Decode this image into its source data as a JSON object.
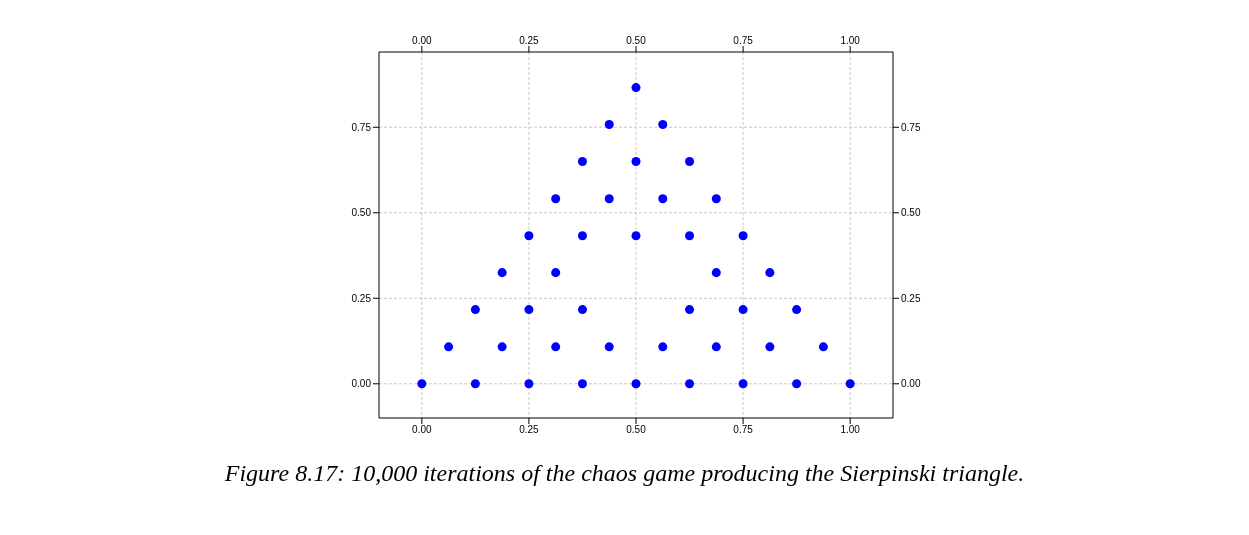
{
  "chart_data": {
    "type": "scatter",
    "x": [
      0,
      0.125,
      0.25,
      0.375,
      0.5,
      0.625,
      0.75,
      0.875,
      1,
      0.0625,
      0.1875,
      0.3125,
      0.4375,
      0.5625,
      0.6875,
      0.8125,
      0.9375,
      0.125,
      0.25,
      0.375,
      0.625,
      0.75,
      0.875,
      0.1875,
      0.3125,
      0.6875,
      0.8125,
      0.25,
      0.375,
      0.5,
      0.625,
      0.75,
      0.3125,
      0.4375,
      0.5625,
      0.6875,
      0.375,
      0.5,
      0.625,
      0.4375,
      0.5625,
      0.5
    ],
    "series": [
      {
        "color": "#0000ff",
        "values": [
          0,
          0,
          0,
          0,
          0,
          0,
          0,
          0,
          0,
          0.108,
          0.108,
          0.108,
          0.108,
          0.108,
          0.108,
          0.108,
          0.108,
          0.217,
          0.217,
          0.217,
          0.217,
          0.217,
          0.217,
          0.325,
          0.325,
          0.325,
          0.325,
          0.433,
          0.433,
          0.433,
          0.433,
          0.433,
          0.541,
          0.541,
          0.541,
          0.541,
          0.65,
          0.65,
          0.65,
          0.758,
          0.758,
          0.866
        ]
      }
    ],
    "xlim": [
      -0.1,
      1.1
    ],
    "ylim": [
      -0.1,
      0.97
    ],
    "xticks": [
      {
        "value": 0,
        "label": "0.00"
      },
      {
        "value": 0.25,
        "label": "0.25"
      },
      {
        "value": 0.5,
        "label": "0.50"
      },
      {
        "value": 0.75,
        "label": "0.75"
      },
      {
        "value": 1,
        "label": "1.00"
      }
    ],
    "x2lim": [
      -0.1,
      1.1
    ],
    "x2ticks": [
      {
        "value": 0,
        "label": "0.00"
      },
      {
        "value": 0.25,
        "label": "0.25"
      },
      {
        "value": 0.5,
        "label": "0.50"
      },
      {
        "value": 0.75,
        "label": "0.75"
      },
      {
        "value": 1,
        "label": "1.00"
      }
    ],
    "yticks": [
      {
        "value": 0,
        "label": "0.00"
      },
      {
        "value": 0.25,
        "label": "0.25"
      },
      {
        "value": 0.5,
        "label": "0.50"
      },
      {
        "value": 0.75,
        "label": "0.75"
      }
    ],
    "y2lim": [
      -0.1,
      0.97
    ],
    "y2ticks": [
      {
        "value": 0,
        "label": "0.00"
      },
      {
        "value": 0.25,
        "label": "0.25"
      },
      {
        "value": 0.5,
        "label": "0.50"
      },
      {
        "value": 0.75,
        "label": "0.75"
      }
    ],
    "grid": true,
    "marker": "circle",
    "annotations": [
      "Figure 8.17: 10,000 iterations of the chaos game producing the Sierpinski triangle."
    ]
  }
}
